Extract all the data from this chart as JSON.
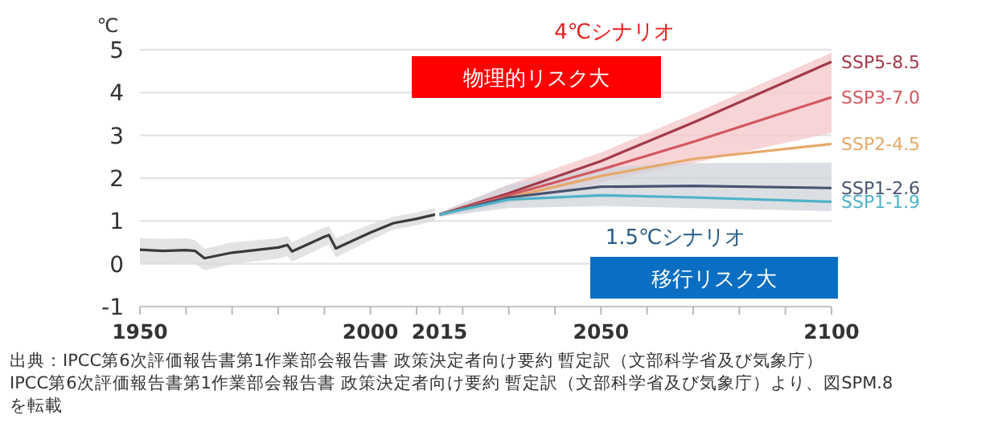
{
  "chart_data": {
    "type": "line",
    "ylabel": "℃",
    "xlim": [
      1950,
      2100
    ],
    "ylim": [
      -1,
      5
    ],
    "xticks": [
      1950,
      {
        "value": 1960,
        "label": null
      },
      {
        "value": 1970,
        "label": null
      },
      {
        "value": 1980,
        "label": null
      },
      {
        "value": 1990,
        "label": null
      },
      2000,
      {
        "value": 2010,
        "label": null
      },
      2015,
      {
        "value": 2020,
        "label": null
      },
      {
        "value": 2030,
        "label": null
      },
      {
        "value": 2040,
        "label": null
      },
      2050,
      {
        "value": 2060,
        "label": null
      },
      {
        "value": 2070,
        "label": null
      },
      {
        "value": 2080,
        "label": null
      },
      {
        "value": 2090,
        "label": null
      },
      2100
    ],
    "yticks": [
      -1,
      0,
      1,
      2,
      3,
      4,
      5
    ],
    "grid": "y",
    "series": [
      {
        "color": "#3a3a3a",
        "x": [
          1950,
          1955,
          1960,
          1962,
          1964,
          1970,
          1980,
          1982,
          1983,
          1990,
          1991,
          1992.5,
          2000,
          2005,
          2010,
          2014
        ],
        "values": [
          0.33,
          0.3,
          0.32,
          0.3,
          0.13,
          0.26,
          0.38,
          0.44,
          0.29,
          0.63,
          0.67,
          0.36,
          0.73,
          0.95,
          1.05,
          1.15
        ],
        "lower": [
          0.0,
          0.0,
          0.02,
          0.0,
          -0.15,
          0.0,
          0.12,
          0.18,
          0.05,
          0.4,
          0.45,
          0.15,
          0.55,
          0.8,
          0.9,
          1.0
        ],
        "upper": [
          0.6,
          0.58,
          0.6,
          0.55,
          0.35,
          0.5,
          0.6,
          0.65,
          0.5,
          0.85,
          0.88,
          0.6,
          0.92,
          1.1,
          1.2,
          1.3
        ]
      },
      {
        "name": "SSP5-8.5",
        "color": "#a23a48",
        "x": [
          2015,
          2030,
          2050,
          2070,
          2100
        ],
        "values": [
          1.15,
          1.65,
          2.4,
          3.3,
          4.72
        ]
      },
      {
        "name": "SSP3-7.0",
        "color": "#d4565e",
        "x": [
          2015,
          2030,
          2050,
          2070,
          2100
        ],
        "values": [
          1.15,
          1.6,
          2.2,
          2.85,
          3.89
        ],
        "lower": [
          1.1,
          1.4,
          1.9,
          2.35,
          3.06
        ],
        "upper": [
          1.2,
          1.85,
          2.6,
          3.5,
          4.93
        ]
      },
      {
        "name": "SSP2-4.5",
        "color": "#e6a868",
        "x": [
          2015,
          2030,
          2050,
          2070,
          2100
        ],
        "values": [
          1.15,
          1.55,
          2.05,
          2.45,
          2.8
        ]
      },
      {
        "name": "SSP1-2.6",
        "color": "#47536f",
        "x": [
          2015,
          2030,
          2050,
          2070,
          2100
        ],
        "values": [
          1.15,
          1.55,
          1.8,
          1.82,
          1.77
        ],
        "lower": [
          1.1,
          1.3,
          1.35,
          1.3,
          1.23
        ],
        "upper": [
          1.2,
          1.85,
          2.25,
          2.35,
          2.36
        ]
      },
      {
        "name": "SSP1-1.9",
        "color": "#4fb3c7",
        "x": [
          2015,
          2030,
          2050,
          2070,
          2100
        ],
        "values": [
          1.15,
          1.5,
          1.6,
          1.55,
          1.45
        ]
      }
    ],
    "annotations": [
      "4℃シナリオ",
      "物理的リスク大",
      "1.5℃シナリオ",
      "移行リスク大",
      "出典：IPCC第6次評価報告書第1作業部会報告書 政策決定者向け要約 暫定訳（文部科学省及び気象庁）",
      "IPCC第6次評価報告書第1作業部会報告書 政策決定者向け要約 暫定訳（文部科学省及び気象庁）より、図SPM.8を転載"
    ]
  }
}
